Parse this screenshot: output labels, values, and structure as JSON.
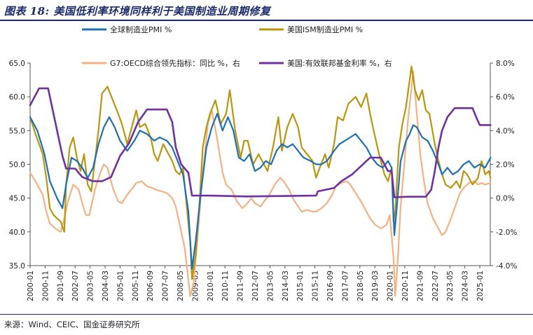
{
  "figure": {
    "title": "图表 18: 美国低利率环境同样利于美国制造业周期修复",
    "source": "来源：Wind、CEIC、国金证券研究所"
  },
  "chart_data": {
    "type": "line",
    "left_axis": {
      "ylim": [
        35,
        65
      ],
      "ticks": [
        "35.0",
        "40.0",
        "45.0",
        "50.0",
        "55.0",
        "60.0",
        "65.0"
      ]
    },
    "right_axis": {
      "ylim": [
        -4,
        8
      ],
      "ticks": [
        "-4.0%",
        "-2.0%",
        "0.0%",
        "2.0%",
        "4.0%",
        "6.0%",
        "8.0%"
      ]
    },
    "x_ticks": [
      "2000-01",
      "2000-11",
      "2001-09",
      "2002-07",
      "2003-05",
      "2004-03",
      "2005-01",
      "2005-11",
      "2006-09",
      "2007-07",
      "2008-05",
      "2009-03",
      "2010-01",
      "2010-11",
      "2011-09",
      "2012-07",
      "2013-05",
      "2014-03",
      "2015-01",
      "2015-11",
      "2016-09",
      "2017-07",
      "2018-05",
      "2019-03",
      "2020-01",
      "2020-11",
      "2021-09",
      "2022-07",
      "2023-05",
      "2024-03",
      "2025-01"
    ],
    "x_range": [
      "2000-01",
      "2025-08"
    ],
    "legend_placement": "top",
    "series": [
      {
        "name": "全球制造业PMI %",
        "axis": "left",
        "color": "#1f6fb4",
        "start": "2000-01",
        "points": []
      },
      {
        "name": "美国ISM制造业PMI %",
        "axis": "left",
        "color": "#b8960f",
        "start": "2000-01",
        "points": [
          [
            2000.0,
            57.0
          ],
          [
            2000.3,
            54.5
          ],
          [
            2000.7,
            51.5
          ],
          [
            2000.9,
            48.0
          ],
          [
            2001.1,
            43.5
          ],
          [
            2001.3,
            42.5
          ],
          [
            2001.5,
            42.0
          ],
          [
            2001.7,
            41.5
          ],
          [
            2001.9,
            40.0
          ],
          [
            2002.0,
            47.0
          ],
          [
            2002.2,
            52.5
          ],
          [
            2002.4,
            54.0
          ],
          [
            2002.6,
            51.0
          ],
          [
            2002.8,
            49.0
          ],
          [
            2003.0,
            51.5
          ],
          [
            2003.2,
            47.0
          ],
          [
            2003.4,
            46.0
          ],
          [
            2003.6,
            50.5
          ],
          [
            2003.8,
            55.0
          ],
          [
            2004.0,
            60.5
          ],
          [
            2004.3,
            61.5
          ],
          [
            2004.6,
            59.5
          ],
          [
            2004.9,
            57.5
          ],
          [
            2005.1,
            56.0
          ],
          [
            2005.4,
            53.0
          ],
          [
            2005.7,
            56.0
          ],
          [
            2005.9,
            58.0
          ],
          [
            2006.1,
            55.5
          ],
          [
            2006.4,
            56.0
          ],
          [
            2006.7,
            54.0
          ],
          [
            2006.9,
            51.5
          ],
          [
            2007.1,
            50.5
          ],
          [
            2007.4,
            53.0
          ],
          [
            2007.7,
            51.5
          ],
          [
            2007.9,
            50.5
          ],
          [
            2008.1,
            49.0
          ],
          [
            2008.3,
            48.5
          ],
          [
            2008.5,
            49.5
          ],
          [
            2008.7,
            44.0
          ],
          [
            2008.9,
            38.5
          ],
          [
            2009.0,
            33.0
          ],
          [
            2009.2,
            36.5
          ],
          [
            2009.4,
            43.5
          ],
          [
            2009.6,
            52.5
          ],
          [
            2009.8,
            55.5
          ],
          [
            2010.0,
            57.5
          ],
          [
            2010.3,
            59.5
          ],
          [
            2010.6,
            56.0
          ],
          [
            2010.9,
            57.5
          ],
          [
            2011.1,
            61.0
          ],
          [
            2011.4,
            55.0
          ],
          [
            2011.7,
            51.0
          ],
          [
            2011.9,
            53.5
          ],
          [
            2012.1,
            53.5
          ],
          [
            2012.4,
            50.0
          ],
          [
            2012.7,
            51.5
          ],
          [
            2012.9,
            50.5
          ],
          [
            2013.2,
            49.0
          ],
          [
            2013.5,
            52.5
          ],
          [
            2013.8,
            57.0
          ],
          [
            2014.0,
            52.0
          ],
          [
            2014.3,
            55.5
          ],
          [
            2014.6,
            57.5
          ],
          [
            2014.9,
            55.5
          ],
          [
            2015.1,
            52.5
          ],
          [
            2015.4,
            51.5
          ],
          [
            2015.7,
            50.5
          ],
          [
            2015.9,
            48.0
          ],
          [
            2016.1,
            49.5
          ],
          [
            2016.4,
            51.5
          ],
          [
            2016.6,
            49.5
          ],
          [
            2016.9,
            53.0
          ],
          [
            2017.1,
            57.0
          ],
          [
            2017.4,
            56.5
          ],
          [
            2017.7,
            59.0
          ],
          [
            2017.9,
            59.5
          ],
          [
            2018.1,
            60.0
          ],
          [
            2018.4,
            58.5
          ],
          [
            2018.7,
            60.5
          ],
          [
            2018.9,
            57.5
          ],
          [
            2019.1,
            55.0
          ],
          [
            2019.4,
            51.5
          ],
          [
            2019.7,
            48.5
          ],
          [
            2019.9,
            47.5
          ],
          [
            2020.1,
            49.5
          ],
          [
            2020.2,
            41.5
          ],
          [
            2020.3,
            43.0
          ],
          [
            2020.5,
            52.5
          ],
          [
            2020.7,
            56.0
          ],
          [
            2020.9,
            58.5
          ],
          [
            2021.1,
            62.5
          ],
          [
            2021.2,
            64.5
          ],
          [
            2021.4,
            61.0
          ],
          [
            2021.6,
            59.5
          ],
          [
            2021.8,
            61.0
          ],
          [
            2022.0,
            58.0
          ],
          [
            2022.2,
            57.5
          ],
          [
            2022.5,
            53.0
          ],
          [
            2022.7,
            50.5
          ],
          [
            2022.9,
            48.5
          ],
          [
            2023.1,
            47.0
          ],
          [
            2023.4,
            46.5
          ],
          [
            2023.7,
            47.5
          ],
          [
            2023.9,
            46.5
          ],
          [
            2024.1,
            49.0
          ],
          [
            2024.3,
            48.5
          ],
          [
            2024.6,
            47.0
          ],
          [
            2024.9,
            48.0
          ],
          [
            2025.1,
            50.5
          ],
          [
            2025.3,
            48.5
          ],
          [
            2025.5,
            49.0
          ],
          [
            2025.6,
            48.0
          ]
        ]
      },
      {
        "name": "G7:OECD综合领先指标：同比 %，右",
        "axis": "right",
        "color": "#f4b183",
        "start": "2000-01",
        "points": [
          [
            2000.0,
            1.5
          ],
          [
            2000.3,
            1.0
          ],
          [
            2000.7,
            0.2
          ],
          [
            2000.9,
            -0.8
          ],
          [
            2001.1,
            -1.5
          ],
          [
            2001.4,
            -1.8
          ],
          [
            2001.7,
            -2.0
          ],
          [
            2001.9,
            -1.2
          ],
          [
            2002.1,
            -0.2
          ],
          [
            2002.4,
            0.8
          ],
          [
            2002.7,
            0.5
          ],
          [
            2002.9,
            -0.3
          ],
          [
            2003.1,
            -1.0
          ],
          [
            2003.3,
            -1.0
          ],
          [
            2003.6,
            0.5
          ],
          [
            2003.9,
            1.5
          ],
          [
            2004.1,
            2.0
          ],
          [
            2004.3,
            1.8
          ],
          [
            2004.6,
            0.6
          ],
          [
            2004.9,
            -0.2
          ],
          [
            2005.1,
            -0.3
          ],
          [
            2005.4,
            0.2
          ],
          [
            2005.7,
            0.6
          ],
          [
            2005.9,
            0.9
          ],
          [
            2006.2,
            1.0
          ],
          [
            2006.5,
            0.7
          ],
          [
            2006.8,
            0.6
          ],
          [
            2007.0,
            0.5
          ],
          [
            2007.3,
            0.4
          ],
          [
            2007.6,
            0.3
          ],
          [
            2007.9,
            0.0
          ],
          [
            2008.1,
            -0.5
          ],
          [
            2008.3,
            -1.5
          ],
          [
            2008.6,
            -3.0
          ],
          [
            2008.9,
            -5.8
          ],
          [
            2009.1,
            -5.0
          ],
          [
            2009.3,
            -2.5
          ],
          [
            2009.6,
            1.5
          ],
          [
            2009.9,
            4.5
          ],
          [
            2010.1,
            5.2
          ],
          [
            2010.4,
            3.5
          ],
          [
            2010.7,
            1.5
          ],
          [
            2010.9,
            0.8
          ],
          [
            2011.2,
            0.5
          ],
          [
            2011.5,
            -0.2
          ],
          [
            2011.8,
            -0.6
          ],
          [
            2012.0,
            -0.4
          ],
          [
            2012.3,
            0.0
          ],
          [
            2012.5,
            -0.3
          ],
          [
            2012.8,
            -0.5
          ],
          [
            2013.0,
            -0.2
          ],
          [
            2013.3,
            0.2
          ],
          [
            2013.6,
            0.8
          ],
          [
            2013.9,
            1.2
          ],
          [
            2014.1,
            1.0
          ],
          [
            2014.4,
            0.5
          ],
          [
            2014.6,
            0.0
          ],
          [
            2014.9,
            -0.5
          ],
          [
            2015.1,
            -0.8
          ],
          [
            2015.4,
            -0.7
          ],
          [
            2015.7,
            -0.8
          ],
          [
            2015.9,
            -0.8
          ],
          [
            2016.2,
            -0.6
          ],
          [
            2016.5,
            -0.3
          ],
          [
            2016.8,
            0.2
          ],
          [
            2017.0,
            0.7
          ],
          [
            2017.3,
            0.9
          ],
          [
            2017.6,
            1.0
          ],
          [
            2017.8,
            0.8
          ],
          [
            2018.1,
            0.3
          ],
          [
            2018.4,
            -0.2
          ],
          [
            2018.7,
            -0.8
          ],
          [
            2018.9,
            -1.2
          ],
          [
            2019.2,
            -1.6
          ],
          [
            2019.5,
            -1.8
          ],
          [
            2019.8,
            -1.6
          ],
          [
            2020.0,
            -1.0
          ],
          [
            2020.2,
            -3.5
          ],
          [
            2020.3,
            -5.8
          ],
          [
            2020.45,
            -3.5
          ],
          [
            2020.6,
            -0.5
          ],
          [
            2020.8,
            2.0
          ],
          [
            2021.0,
            4.5
          ],
          [
            2021.2,
            6.5
          ],
          [
            2021.3,
            7.5
          ],
          [
            2021.5,
            5.0
          ],
          [
            2021.7,
            2.5
          ],
          [
            2021.9,
            1.0
          ],
          [
            2022.1,
            -0.3
          ],
          [
            2022.4,
            -1.2
          ],
          [
            2022.7,
            -1.8
          ],
          [
            2022.9,
            -2.2
          ],
          [
            2023.1,
            -2.0
          ],
          [
            2023.4,
            -1.2
          ],
          [
            2023.7,
            -0.3
          ],
          [
            2023.9,
            0.3
          ],
          [
            2024.1,
            0.6
          ],
          [
            2024.4,
            0.9
          ],
          [
            2024.7,
            1.0
          ],
          [
            2024.9,
            0.8
          ],
          [
            2025.1,
            0.9
          ],
          [
            2025.3,
            0.8
          ],
          [
            2025.6,
            0.9
          ]
        ]
      },
      {
        "name": "美国:有效联邦基金利率 %，右",
        "axis": "right",
        "color": "#7030a0",
        "start": "2000-01",
        "points": [
          [
            2000.0,
            5.5
          ],
          [
            2000.5,
            6.5
          ],
          [
            2001.0,
            6.5
          ],
          [
            2001.2,
            5.5
          ],
          [
            2001.5,
            4.0
          ],
          [
            2001.8,
            2.5
          ],
          [
            2002.0,
            1.75
          ],
          [
            2002.5,
            1.75
          ],
          [
            2002.9,
            1.25
          ],
          [
            2003.5,
            1.0
          ],
          [
            2004.0,
            1.0
          ],
          [
            2004.5,
            1.25
          ],
          [
            2005.0,
            2.5
          ],
          [
            2005.5,
            3.25
          ],
          [
            2006.0,
            4.5
          ],
          [
            2006.5,
            5.25
          ],
          [
            2007.0,
            5.25
          ],
          [
            2007.6,
            5.25
          ],
          [
            2007.9,
            4.5
          ],
          [
            2008.1,
            3.0
          ],
          [
            2008.4,
            2.0
          ],
          [
            2008.8,
            1.5
          ],
          [
            2009.0,
            0.15
          ],
          [
            2010.0,
            0.15
          ],
          [
            2012.0,
            0.1
          ],
          [
            2015.9,
            0.15
          ],
          [
            2016.0,
            0.4
          ],
          [
            2016.9,
            0.6
          ],
          [
            2017.3,
            1.0
          ],
          [
            2017.9,
            1.4
          ],
          [
            2018.4,
            1.9
          ],
          [
            2018.9,
            2.4
          ],
          [
            2019.5,
            2.4
          ],
          [
            2019.7,
            2.0
          ],
          [
            2019.9,
            1.6
          ],
          [
            2020.1,
            1.6
          ],
          [
            2020.25,
            0.05
          ],
          [
            2021.0,
            0.08
          ],
          [
            2022.0,
            0.08
          ],
          [
            2022.3,
            0.5
          ],
          [
            2022.5,
            1.6
          ],
          [
            2022.7,
            3.0
          ],
          [
            2022.9,
            4.0
          ],
          [
            2023.2,
            4.8
          ],
          [
            2023.6,
            5.33
          ],
          [
            2024.6,
            5.33
          ],
          [
            2024.8,
            4.8
          ],
          [
            2025.0,
            4.33
          ],
          [
            2025.6,
            4.33
          ]
        ]
      }
    ]
  }
}
